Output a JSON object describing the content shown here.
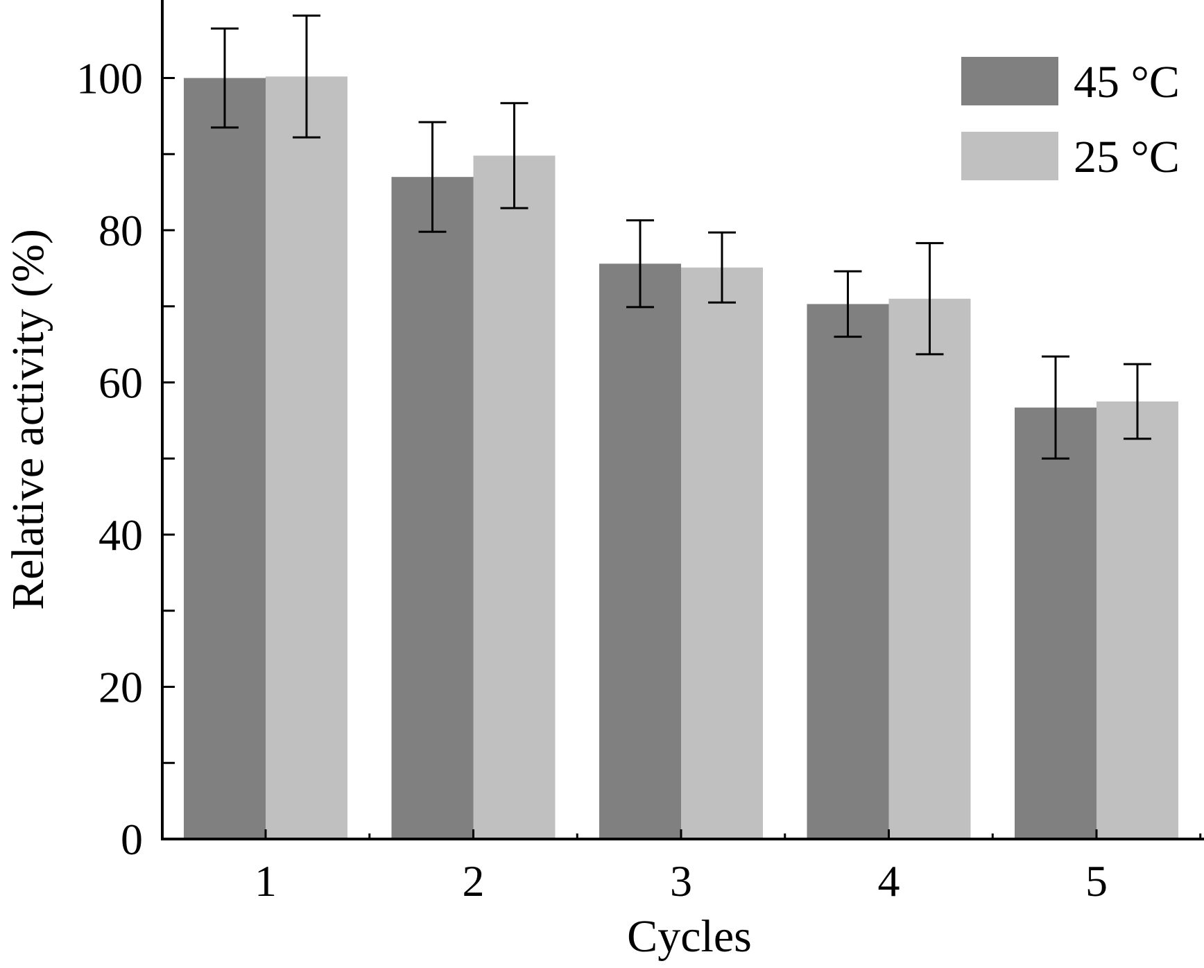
{
  "chart_data": {
    "type": "bar",
    "title": "",
    "xlabel": "Cycles",
    "ylabel": "Relative activity (%)",
    "categories": [
      "1",
      "2",
      "3",
      "4",
      "5"
    ],
    "ylim": [
      0,
      110
    ],
    "yticks_major": [
      "0",
      "20",
      "40",
      "60",
      "80",
      "100"
    ],
    "grid": false,
    "legend_position": "top-right",
    "series": [
      {
        "name": "45 °C",
        "color": "#808080",
        "values": [
          100.0,
          87.0,
          75.6,
          70.3,
          56.7
        ],
        "errors": [
          6.5,
          7.2,
          5.7,
          4.3,
          6.7
        ]
      },
      {
        "name": "25 °C",
        "color": "#c0c0c0",
        "values": [
          100.2,
          89.8,
          75.1,
          71.0,
          57.5
        ],
        "errors": [
          8.0,
          6.9,
          4.6,
          7.3,
          4.9
        ]
      }
    ]
  }
}
